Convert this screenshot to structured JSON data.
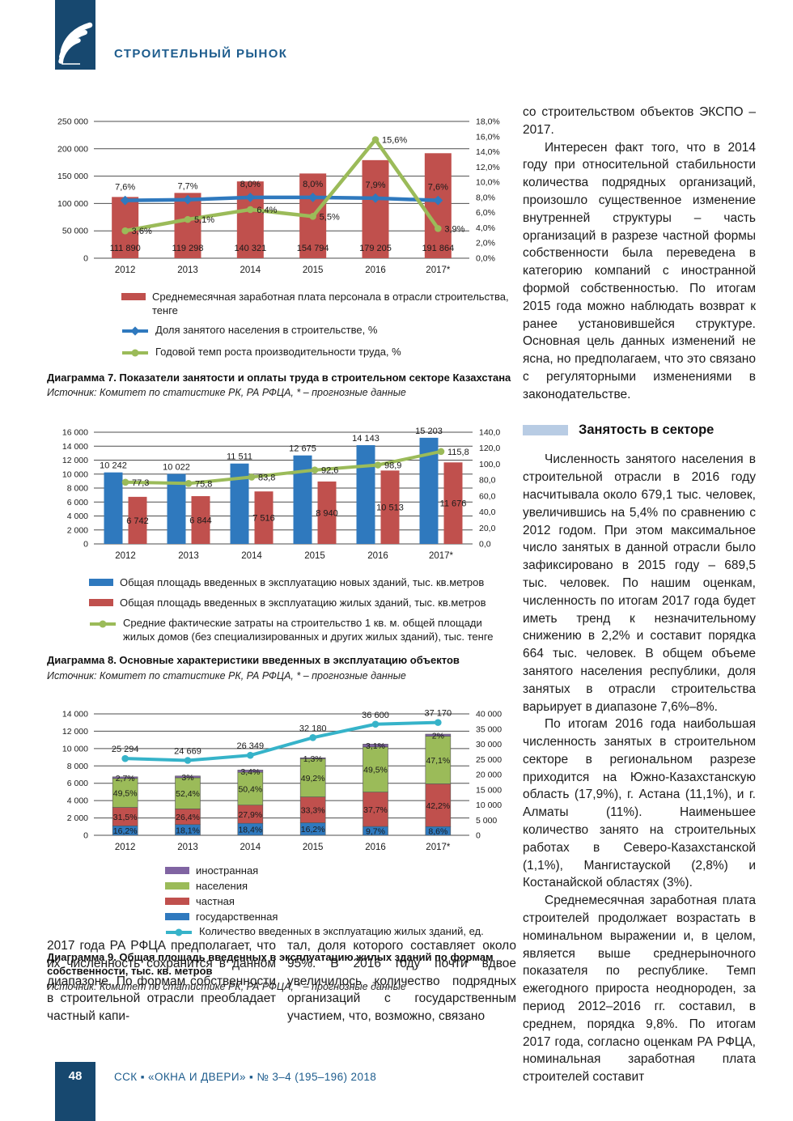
{
  "page": {
    "section_title": "СТРОИТЕЛЬНЫЙ РЫНОК",
    "footer_page_number": "48",
    "footer_journal": "ССК ▪ «ОКНА И ДВЕРИ» ▪ № 3–4 (195–196) 2018",
    "colors": {
      "brand_navy": "#17486F",
      "brand_blue_text": "#1D5C8D",
      "heading_marker": "#B8CCE4"
    }
  },
  "chart_data": [
    {
      "id": "diagram7",
      "type": "bar",
      "caption": "Диаграмма 7. Показатели занятости и оплаты труда в строительном секторе Казахстана",
      "source": "Источник: Комитет по статистике РК, РА РФЦА, * – прогнозные данные",
      "categories": [
        "2012",
        "2013",
        "2014",
        "2015",
        "2016",
        "2017*"
      ],
      "left_axis": {
        "min": 0,
        "max": 250000,
        "labels": [
          "0",
          "50 000",
          "100 000",
          "150 000",
          "200 000",
          "250 000"
        ]
      },
      "right_axis": {
        "min": 0,
        "max": 18,
        "labels": [
          "0,0%",
          "2,0%",
          "4,0%",
          "6,0%",
          "8,0%",
          "10,0%",
          "12,0%",
          "14,0%",
          "16,0%",
          "18,0%"
        ]
      },
      "bar_series": [
        {
          "name": "Среднемесячная заработная плата персонала в отрасли строительства, тенге",
          "color": "#C0504D",
          "label_pos": "bottom",
          "values": [
            111890,
            119298,
            140321,
            154794,
            179205,
            191864
          ],
          "labels": [
            "111 890",
            "119 298",
            "140 321",
            "154 794",
            "179 205",
            "191 864"
          ]
        }
      ],
      "line_series": [
        {
          "name": "Доля занятого населения в строительстве, %",
          "color": "#2F79BE",
          "axis": "right",
          "marker": "diamond",
          "label_pos": "above",
          "label_dy": -13,
          "values": [
            7.6,
            7.7,
            8.0,
            8.0,
            7.9,
            7.6
          ],
          "labels": [
            "7,6%",
            "7,7%",
            "8,0%",
            "8,0%",
            "7,9%",
            "7,6%"
          ]
        },
        {
          "name": "Годовой темп роста производительности труда, %",
          "color": "#9BBB59",
          "axis": "right",
          "marker": "circle",
          "label_pos": "right",
          "values": [
            3.6,
            5.1,
            6.4,
            5.5,
            15.6,
            3.9
          ],
          "labels": [
            "3,6%",
            "5,1%",
            "6,4%",
            "5,5%",
            "15,6%",
            "3,9%"
          ]
        }
      ],
      "legend": [
        {
          "swatch": "bar",
          "color": "#C0504D",
          "label": "Среднемесячная заработная плата персонала в отрасли строительства, тенге"
        },
        {
          "swatch": "line-diamond",
          "color": "#2F79BE",
          "label": "Доля занятого населения в строительстве, %"
        },
        {
          "swatch": "line-circle",
          "color": "#9BBB59",
          "label": "Годовой темп роста производительности труда, %"
        }
      ]
    },
    {
      "id": "diagram8",
      "type": "bar",
      "caption": "Диаграмма 8. Основные характеристики введенных в эксплуатацию объектов",
      "source": "Источник: Комитет по статистике РК, РА РФЦА, * – прогнозные данные",
      "categories": [
        "2012",
        "2013",
        "2014",
        "2015",
        "2016",
        "2017*"
      ],
      "left_axis": {
        "min": 0,
        "max": 16000,
        "labels": [
          "0",
          "2 000",
          "4 000",
          "6 000",
          "8 000",
          "10 000",
          "12 000",
          "14 000",
          "16 000"
        ]
      },
      "right_axis": {
        "min": 0,
        "max": 140,
        "labels": [
          "0,0",
          "20,0",
          "40,0",
          "60,0",
          "80,0",
          "100,0",
          "120,0",
          "140,0"
        ]
      },
      "bar_series": [
        {
          "name": "Общая площадь введенных в эксплуатацию новых зданий, тыс. кв.метров",
          "color": "#2F79BE",
          "label_pos": "top",
          "values": [
            10242,
            10022,
            11511,
            12675,
            14143,
            15203
          ],
          "labels": [
            "10 242",
            "10 022",
            "11 511",
            "12 675",
            "14 143",
            "15 203"
          ]
        },
        {
          "name": "Общая площадь введенных в эксплуатацию жилых зданий, тыс. кв.метров",
          "color": "#C0504D",
          "label_pos": "mid",
          "values": [
            6742,
            6844,
            7516,
            8940,
            10513,
            11676
          ],
          "labels": [
            "6 742",
            "6 844",
            "7 516",
            "8 940",
            "10 513",
            "11 676"
          ]
        }
      ],
      "line_series": [
        {
          "name": "Средние фактические затраты на строительство 1 кв. м. общей площади жилых домов (без специализированных и других жилых зданий), тыс. тенге",
          "color": "#9BBB59",
          "axis": "right",
          "marker": "circle",
          "label_pos": "right",
          "values": [
            77.3,
            75.8,
            83.8,
            92.6,
            98.9,
            115.8
          ],
          "labels": [
            "77,3",
            "75,8",
            "83,8",
            "92,6",
            "98,9",
            "115,8"
          ]
        }
      ],
      "legend": [
        {
          "swatch": "bar",
          "color": "#2F79BE",
          "label": "Общая площадь введенных в эксплуатацию новых зданий, тыс. кв.метров"
        },
        {
          "swatch": "bar",
          "color": "#C0504D",
          "label": "Общая площадь введенных в эксплуатацию жилых зданий, тыс. кв.метров"
        },
        {
          "swatch": "line-circle",
          "color": "#9BBB59",
          "label": "Средние фактические затраты на строительство 1 кв. м. общей площади жилых домов (без специализированных и других жилых зданий), тыс. тенге"
        }
      ]
    },
    {
      "id": "diagram9",
      "type": "bar",
      "caption": "Диаграмма 9. Общая площадь введенных в эксплуатацию жилых зданий по формам собственности, тыс. кв. метров",
      "source": "Источник: Комитет по статистике РК, РА РФЦА, * – прогнозные данные",
      "categories": [
        "2012",
        "2013",
        "2014",
        "2015",
        "2016",
        "2017*"
      ],
      "left_axis": {
        "min": 0,
        "max": 14000,
        "labels": [
          "0",
          "2 000",
          "4 000",
          "6 000",
          "8 000",
          "10 000",
          "12 000",
          "14 000"
        ]
      },
      "right_axis": {
        "min": 0,
        "max": 40000,
        "labels": [
          "0",
          "5 000",
          "10 000",
          "15 000",
          "20 000",
          "25 000",
          "30 000",
          "35 000",
          "40 000"
        ]
      },
      "totals_values": [
        6742,
        6844,
        7516,
        8940,
        10513,
        11676
      ],
      "stack_series": [
        {
          "name": "государственная",
          "color": "#2F79BE",
          "pct": [
            16.2,
            18.1,
            18.4,
            16.2,
            9.7,
            8.6
          ],
          "labels": [
            "16,2%",
            "18,1%",
            "18,4%",
            "16,2%",
            "9,7%",
            "8,6%"
          ]
        },
        {
          "name": "частная",
          "color": "#C0504D",
          "pct": [
            31.5,
            26.4,
            27.9,
            33.3,
            37.7,
            42.2
          ],
          "labels": [
            "31,5%",
            "26,4%",
            "27,9%",
            "33,3%",
            "37,7%",
            "42,2%"
          ]
        },
        {
          "name": "населения",
          "color": "#9BBB59",
          "pct": [
            49.5,
            52.4,
            50.4,
            49.2,
            49.5,
            47.1
          ],
          "labels": [
            "49,5%",
            "52,4%",
            "50,4%",
            "49,2%",
            "49,5%",
            "47,1%"
          ]
        },
        {
          "name": "иностранная",
          "color": "#8064A2",
          "pct": [
            2.7,
            3,
            3.4,
            1.3,
            3.1,
            2
          ],
          "labels": [
            "2,7%",
            "3%",
            "3,4%",
            "1,3%",
            "3,1%",
            "2%"
          ]
        }
      ],
      "line_series": [
        {
          "name": "Количество введенных в эксплуатацию жилых зданий, ед.",
          "color": "#36B3C9",
          "axis": "right",
          "marker": "circle",
          "label_pos": "above",
          "label_dy": -8,
          "values": [
            25294,
            24669,
            26349,
            32180,
            36600,
            37170
          ],
          "labels": [
            "25 294",
            "24 669",
            "26 349",
            "32 180",
            "36 600",
            "37 170"
          ]
        }
      ],
      "legend": [
        {
          "swatch": "bar",
          "color": "#8064A2",
          "label": "иностранная"
        },
        {
          "swatch": "bar",
          "color": "#9BBB59",
          "label": "населения"
        },
        {
          "swatch": "bar",
          "color": "#C0504D",
          "label": "частная"
        },
        {
          "swatch": "bar",
          "color": "#2F79BE",
          "label": "государственная"
        },
        {
          "swatch": "line-circle",
          "color": "#36B3C9",
          "label": "Количество введенных в эксплуатацию жилых зданий, ед."
        }
      ]
    }
  ],
  "right_column": {
    "p1": "со строительством объектов ЭКСПО – 2017.",
    "p2": "Интересен факт того, что в 2014 году при относительной стабильности количества подрядных организаций, произошло существенное изменение внутренней структуры – часть организаций в разрезе частной формы собственности была переведена в категорию компаний с иностранной формой собственностью. По итогам 2015 года можно наблюдать возврат к ранее установившейся структуре. Основная цель данных изменений не ясна, но предполагаем, что это связано с регуляторными изменениями в законодательстве.",
    "heading": "Занятость в секторе",
    "p3": "Численность занятого населения в строительной отрасли в 2016 году насчитывала около 679,1 тыс. человек, увеличившись на 5,4% по сравнению с 2012 годом. При этом максимальное число занятых в данной отрасли было зафиксировано в 2015 году – 689,5 тыс. человек. По нашим оценкам, численность по итогам 2017 года будет иметь тренд к незначительному снижению в 2,2% и составит порядка 664 тыс. человек. В общем объеме занятого населения республики, доля занятых в отрасли строительства варьирует в диапазоне 7,6%–8%.",
    "p4": "По итогам 2016 года наибольшая численность занятых в строительном секторе в региональном разрезе приходится на Южно-Казахстанскую область (17,9%), г. Астана (11,1%), и г. Алматы (11%). Наименьшее количество занято на строительных работах в Северо-Казахстанской (1,1%), Мангистауской (2,8%) и Костанайской областях (3%).",
    "p5": "Среднемесячная заработная плата строителей продолжает возрастать в номинальном выражении и, в целом, является выше среднерыночного показателя по республике. Темп ежегодного прироста неоднороден, за период 2012–2016 гг. составил, в среднем, порядка 9,8%. По итогам 2017 года, согласно оценкам РА РФЦА, номинальная заработная плата строителей составит"
  },
  "bottom_columns": {
    "left": "2017 года РА РФЦА предполагает, что их численность сохранится в данном диапазоне. По формам собственности в строительной отрасли преобладает частный капи-",
    "middle": "тал, доля которого составляет около 95%. В 2016 году почти вдвое увеличилось количество подрядных организаций с государственным участием, что, возможно, связано"
  }
}
